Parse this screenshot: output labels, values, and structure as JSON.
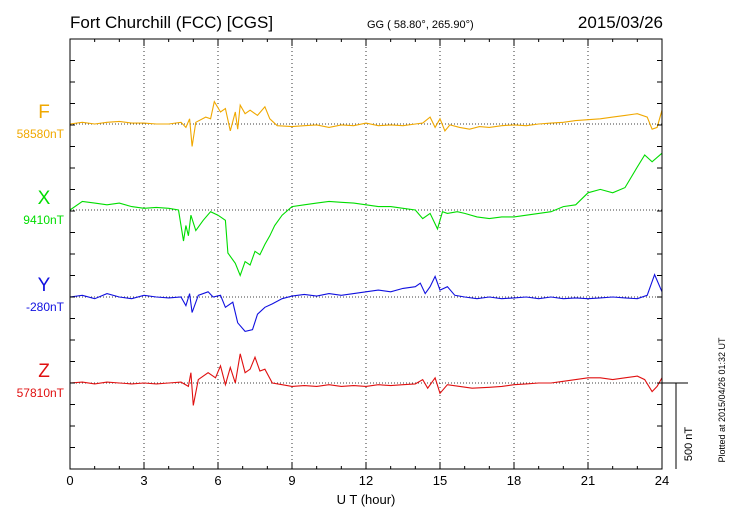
{
  "header": {
    "station": "Fort Churchill (FCC)  [CGS]",
    "coords": "GG ( 58.80°, 265.90°)",
    "date": "2015/03/26"
  },
  "chart_data": {
    "type": "line",
    "xlabel": "U T (hour)",
    "xlim": [
      0,
      24
    ],
    "xticks": [
      "0",
      "3",
      "6",
      "9",
      "12",
      "15",
      "18",
      "21",
      "24"
    ],
    "grid": true,
    "units": "nT",
    "scale_bar": {
      "label": "500 nT",
      "value_nT": 500
    },
    "series": [
      {
        "name": "F",
        "baseline": "58580nT",
        "color": "#f0a800",
        "points": [
          [
            0,
            0
          ],
          [
            0.5,
            10
          ],
          [
            1,
            0
          ],
          [
            1.5,
            10
          ],
          [
            2,
            15
          ],
          [
            2.5,
            5
          ],
          [
            3,
            5
          ],
          [
            3.5,
            0
          ],
          [
            4,
            0
          ],
          [
            4.5,
            10
          ],
          [
            4.7,
            -20
          ],
          [
            4.85,
            30
          ],
          [
            4.95,
            -130
          ],
          [
            5.1,
            10
          ],
          [
            5.5,
            40
          ],
          [
            5.7,
            30
          ],
          [
            5.85,
            130
          ],
          [
            6.1,
            70
          ],
          [
            6.3,
            90
          ],
          [
            6.5,
            -40
          ],
          [
            6.7,
            70
          ],
          [
            6.8,
            -30
          ],
          [
            6.9,
            110
          ],
          [
            7.1,
            60
          ],
          [
            7.3,
            80
          ],
          [
            7.6,
            50
          ],
          [
            7.9,
            100
          ],
          [
            8.1,
            30
          ],
          [
            8.4,
            -10
          ],
          [
            9,
            -15
          ],
          [
            9.5,
            -10
          ],
          [
            10,
            -5
          ],
          [
            10.5,
            -20
          ],
          [
            11,
            -5
          ],
          [
            11.5,
            -10
          ],
          [
            12,
            5
          ],
          [
            12.5,
            -10
          ],
          [
            13,
            -5
          ],
          [
            13.5,
            -10
          ],
          [
            14,
            0
          ],
          [
            14.3,
            5
          ],
          [
            14.6,
            40
          ],
          [
            14.8,
            -20
          ],
          [
            15,
            30
          ],
          [
            15.2,
            -40
          ],
          [
            15.4,
            -5
          ],
          [
            15.8,
            -20
          ],
          [
            16.2,
            -30
          ],
          [
            16.6,
            -15
          ],
          [
            17,
            -20
          ],
          [
            17.5,
            -10
          ],
          [
            18,
            -5
          ],
          [
            18.5,
            -10
          ],
          [
            19,
            0
          ],
          [
            19.5,
            5
          ],
          [
            20,
            10
          ],
          [
            20.5,
            20
          ],
          [
            21,
            25
          ],
          [
            21.5,
            30
          ],
          [
            22,
            40
          ],
          [
            22.5,
            50
          ],
          [
            23,
            60
          ],
          [
            23.4,
            40
          ],
          [
            23.6,
            -30
          ],
          [
            23.8,
            -20
          ],
          [
            24,
            80
          ]
        ]
      },
      {
        "name": "X",
        "baseline": "9410nT",
        "color": "#00dd00",
        "points": [
          [
            0,
            0
          ],
          [
            0.5,
            50
          ],
          [
            1,
            40
          ],
          [
            1.5,
            30
          ],
          [
            2,
            40
          ],
          [
            2.5,
            20
          ],
          [
            3,
            10
          ],
          [
            3.5,
            15
          ],
          [
            4,
            10
          ],
          [
            4.4,
            0
          ],
          [
            4.6,
            -180
          ],
          [
            4.7,
            -90
          ],
          [
            4.8,
            -150
          ],
          [
            4.9,
            -30
          ],
          [
            5.1,
            -120
          ],
          [
            5.4,
            -60
          ],
          [
            5.7,
            -10
          ],
          [
            6,
            -30
          ],
          [
            6.3,
            -60
          ],
          [
            6.4,
            -250
          ],
          [
            6.7,
            -310
          ],
          [
            6.9,
            -380
          ],
          [
            7.1,
            -300
          ],
          [
            7.3,
            -320
          ],
          [
            7.5,
            -240
          ],
          [
            7.7,
            -260
          ],
          [
            7.9,
            -200
          ],
          [
            8.1,
            -150
          ],
          [
            8.3,
            -90
          ],
          [
            8.6,
            -30
          ],
          [
            9,
            20
          ],
          [
            9.5,
            30
          ],
          [
            10,
            40
          ],
          [
            10.5,
            50
          ],
          [
            11,
            45
          ],
          [
            11.5,
            40
          ],
          [
            12,
            30
          ],
          [
            12.5,
            20
          ],
          [
            13,
            20
          ],
          [
            13.5,
            10
          ],
          [
            14,
            0
          ],
          [
            14.3,
            -50
          ],
          [
            14.6,
            -20
          ],
          [
            14.9,
            -110
          ],
          [
            15.1,
            -10
          ],
          [
            15.3,
            -20
          ],
          [
            15.7,
            -10
          ],
          [
            16,
            -20
          ],
          [
            16.5,
            -40
          ],
          [
            17,
            -50
          ],
          [
            17.5,
            -40
          ],
          [
            18,
            -40
          ],
          [
            18.5,
            -30
          ],
          [
            19,
            -20
          ],
          [
            19.5,
            -10
          ],
          [
            20,
            20
          ],
          [
            20.5,
            30
          ],
          [
            21,
            100
          ],
          [
            21.5,
            120
          ],
          [
            22,
            100
          ],
          [
            22.5,
            130
          ],
          [
            23,
            250
          ],
          [
            23.3,
            320
          ],
          [
            23.6,
            280
          ],
          [
            24,
            330
          ]
        ]
      },
      {
        "name": "Y",
        "baseline": "-280nT",
        "color": "#1010e0",
        "points": [
          [
            0,
            0
          ],
          [
            0.5,
            10
          ],
          [
            1,
            -10
          ],
          [
            1.5,
            20
          ],
          [
            2,
            0
          ],
          [
            2.5,
            -10
          ],
          [
            3,
            10
          ],
          [
            3.5,
            0
          ],
          [
            4,
            -5
          ],
          [
            4.5,
            0
          ],
          [
            4.7,
            -50
          ],
          [
            4.85,
            20
          ],
          [
            4.95,
            -90
          ],
          [
            5.2,
            10
          ],
          [
            5.6,
            30
          ],
          [
            5.8,
            0
          ],
          [
            6.1,
            10
          ],
          [
            6.3,
            -60
          ],
          [
            6.6,
            -30
          ],
          [
            6.8,
            -150
          ],
          [
            7.1,
            -200
          ],
          [
            7.4,
            -190
          ],
          [
            7.6,
            -100
          ],
          [
            7.9,
            -60
          ],
          [
            8.2,
            -40
          ],
          [
            8.6,
            -10
          ],
          [
            9,
            5
          ],
          [
            9.5,
            15
          ],
          [
            10,
            5
          ],
          [
            10.5,
            20
          ],
          [
            11,
            10
          ],
          [
            11.5,
            20
          ],
          [
            12,
            30
          ],
          [
            12.5,
            40
          ],
          [
            13,
            30
          ],
          [
            13.5,
            50
          ],
          [
            14,
            60
          ],
          [
            14.2,
            80
          ],
          [
            14.4,
            20
          ],
          [
            14.6,
            60
          ],
          [
            14.8,
            120
          ],
          [
            15,
            40
          ],
          [
            15.3,
            60
          ],
          [
            15.6,
            10
          ],
          [
            16,
            0
          ],
          [
            16.5,
            -10
          ],
          [
            17,
            0
          ],
          [
            17.5,
            -10
          ],
          [
            18,
            -5
          ],
          [
            18.5,
            0
          ],
          [
            19,
            -10
          ],
          [
            19.5,
            0
          ],
          [
            20,
            -10
          ],
          [
            20.5,
            -5
          ],
          [
            21,
            -10
          ],
          [
            21.5,
            -5
          ],
          [
            22,
            0
          ],
          [
            22.5,
            -5
          ],
          [
            23,
            -10
          ],
          [
            23.4,
            10
          ],
          [
            23.7,
            130
          ],
          [
            24,
            30
          ]
        ]
      },
      {
        "name": "Z",
        "baseline": "57810nT",
        "color": "#e01010",
        "points": [
          [
            0,
            0
          ],
          [
            0.5,
            5
          ],
          [
            1,
            -5
          ],
          [
            1.5,
            5
          ],
          [
            2,
            0
          ],
          [
            2.5,
            -5
          ],
          [
            3,
            0
          ],
          [
            3.5,
            -5
          ],
          [
            4,
            0
          ],
          [
            4.5,
            5
          ],
          [
            4.8,
            -20
          ],
          [
            4.9,
            60
          ],
          [
            5,
            -130
          ],
          [
            5.2,
            20
          ],
          [
            5.6,
            60
          ],
          [
            5.9,
            30
          ],
          [
            6.1,
            100
          ],
          [
            6.3,
            -10
          ],
          [
            6.5,
            90
          ],
          [
            6.7,
            0
          ],
          [
            6.9,
            170
          ],
          [
            7.1,
            60
          ],
          [
            7.3,
            80
          ],
          [
            7.5,
            150
          ],
          [
            7.7,
            70
          ],
          [
            7.9,
            80
          ],
          [
            8.2,
            0
          ],
          [
            8.6,
            -10
          ],
          [
            9,
            -20
          ],
          [
            9.5,
            -15
          ],
          [
            10,
            -20
          ],
          [
            10.5,
            -10
          ],
          [
            11,
            -20
          ],
          [
            11.5,
            -15
          ],
          [
            12,
            -20
          ],
          [
            12.5,
            -10
          ],
          [
            13,
            -15
          ],
          [
            13.5,
            -10
          ],
          [
            14,
            -5
          ],
          [
            14.3,
            20
          ],
          [
            14.5,
            -30
          ],
          [
            14.8,
            30
          ],
          [
            15,
            -60
          ],
          [
            15.3,
            -10
          ],
          [
            15.8,
            -20
          ],
          [
            16.3,
            -30
          ],
          [
            17,
            -25
          ],
          [
            17.5,
            -20
          ],
          [
            18,
            -10
          ],
          [
            18.5,
            -5
          ],
          [
            19,
            0
          ],
          [
            19.5,
            0
          ],
          [
            20,
            10
          ],
          [
            20.5,
            20
          ],
          [
            21,
            30
          ],
          [
            21.5,
            30
          ],
          [
            22,
            20
          ],
          [
            22.5,
            30
          ],
          [
            23,
            40
          ],
          [
            23.3,
            20
          ],
          [
            23.6,
            -50
          ],
          [
            23.8,
            -20
          ],
          [
            24,
            30
          ]
        ]
      }
    ]
  },
  "footer": {
    "plotted": "Plotted at 2015/04/26 01:32 UT"
  }
}
